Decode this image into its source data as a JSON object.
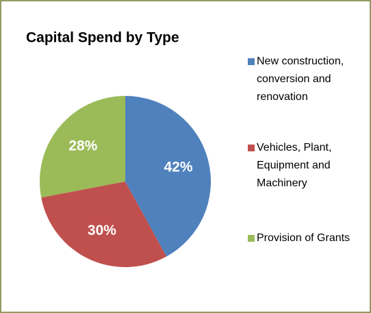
{
  "chart_data": {
    "type": "pie",
    "title": "Capital Spend by Type",
    "categories": [
      "New construction, conversion and renovation",
      "Vehicles, Plant, Equipment and Machinery",
      "Provision of Grants"
    ],
    "values": [
      42,
      30,
      28
    ],
    "value_labels": [
      "42%",
      "30%",
      "28%"
    ],
    "colors": [
      "#4f81bd",
      "#c0504d",
      "#9bbb59"
    ]
  }
}
